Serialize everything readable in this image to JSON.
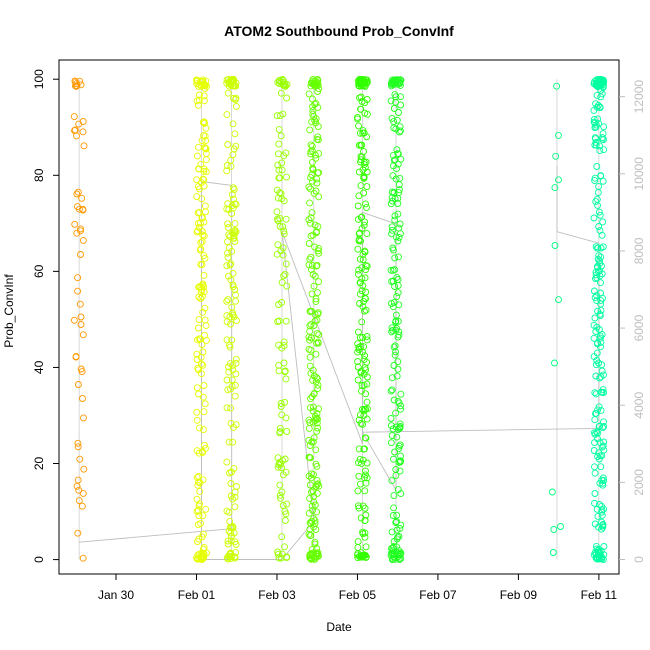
{
  "chart_data": {
    "type": "scatter",
    "title": "ATOM2 Southbound Prob_ConvInf",
    "xlabel": "Date",
    "ylabel": "Prob_ConvInf",
    "xlim": [
      "2024-01-28 14:00",
      "2024-02-11 12:00"
    ],
    "ylim": [
      -3,
      104
    ],
    "y2lim": [
      -375,
      12950
    ],
    "x_ticks": [
      {
        "label": "Jan 30",
        "at": "2024-01-30 00:00"
      },
      {
        "label": "Feb 01",
        "at": "2024-02-01 00:00"
      },
      {
        "label": "Feb 03",
        "at": "2024-02-03 00:00"
      },
      {
        "label": "Feb 05",
        "at": "2024-02-05 00:00"
      },
      {
        "label": "Feb 07",
        "at": "2024-02-07 00:00"
      },
      {
        "label": "Feb 09",
        "at": "2024-02-09 00:00"
      },
      {
        "label": "Feb 11",
        "at": "2024-02-11 00:00"
      }
    ],
    "y_ticks": [
      {
        "label": "0",
        "value": 0
      },
      {
        "label": "20",
        "value": 20
      },
      {
        "label": "40",
        "value": 40
      },
      {
        "label": "60",
        "value": 60
      },
      {
        "label": "80",
        "value": 80
      },
      {
        "label": "100",
        "value": 100
      }
    ],
    "y2_ticks": [
      {
        "label": "0",
        "value": 0
      },
      {
        "label": "2000",
        "value": 2000
      },
      {
        "label": "4000",
        "value": 4000
      },
      {
        "label": "6000",
        "value": 6000
      },
      {
        "label": "8000",
        "value": 8000
      },
      {
        "label": "10000",
        "value": 10000
      },
      {
        "label": "12000",
        "value": 12000
      }
    ],
    "grid": false,
    "colors": {
      "line": "#bebebe",
      "axis": "#000000",
      "secondary_axis": "#bebebe"
    },
    "clusters": [
      {
        "date": "2024-01-29 02:00",
        "color": "#ff9900",
        "n": 55,
        "ymin": 0,
        "ymax": 100
      },
      {
        "date": "2024-02-01 03:00",
        "color": "#e6ff00",
        "n": 170,
        "ymin": 0,
        "ymax": 100
      },
      {
        "date": "2024-02-01 21:00",
        "color": "#ccff00",
        "n": 160,
        "ymin": 0,
        "ymax": 100
      },
      {
        "date": "2024-02-03 03:00",
        "color": "#99ff00",
        "n": 110,
        "ymin": 0,
        "ymax": 100
      },
      {
        "date": "2024-02-03 22:00",
        "color": "#66ff00",
        "n": 220,
        "ymin": 0,
        "ymax": 100
      },
      {
        "date": "2024-02-05 03:00",
        "color": "#33ff00",
        "n": 210,
        "ymin": 0,
        "ymax": 100
      },
      {
        "date": "2024-02-05 23:00",
        "color": "#22ff22",
        "n": 200,
        "ymin": 0,
        "ymax": 100
      },
      {
        "date": "2024-02-09 23:00",
        "color": "#00ff80",
        "n": 12,
        "ymin": 0,
        "ymax": 100
      },
      {
        "date": "2024-02-11 00:00",
        "color": "#00ffa0",
        "n": 230,
        "ymin": 0,
        "ymax": 100
      }
    ],
    "count_line": [
      {
        "date": "2024-01-29 02:00",
        "count": 450
      },
      {
        "date": "2024-02-01 21:00",
        "count": 800
      },
      {
        "date": "2024-02-01 21:00",
        "count": 9700
      },
      {
        "date": "2024-02-01 03:00",
        "count": 9800
      },
      {
        "date": "2024-02-01 03:00",
        "count": 0
      },
      {
        "date": "2024-02-03 03:00",
        "count": 0
      },
      {
        "date": "2024-02-03 22:00",
        "count": 1000
      },
      {
        "date": "2024-02-03 03:00",
        "count": 8500
      },
      {
        "date": "2024-02-05 03:00",
        "count": 3000
      },
      {
        "date": "2024-02-05 03:00",
        "count": 9000
      },
      {
        "date": "2024-02-05 23:00",
        "count": 8700
      },
      {
        "date": "2024-02-05 23:00",
        "count": 1800
      },
      {
        "date": "2024-02-05 03:00",
        "count": 3300
      },
      {
        "date": "2024-02-11 00:00",
        "count": 3400
      },
      {
        "date": "2024-02-11 00:00",
        "count": 8200
      },
      {
        "date": "2024-02-09 23:00",
        "count": 8500
      },
      {
        "date": "2024-02-09 23:00",
        "count": 10200
      }
    ]
  }
}
